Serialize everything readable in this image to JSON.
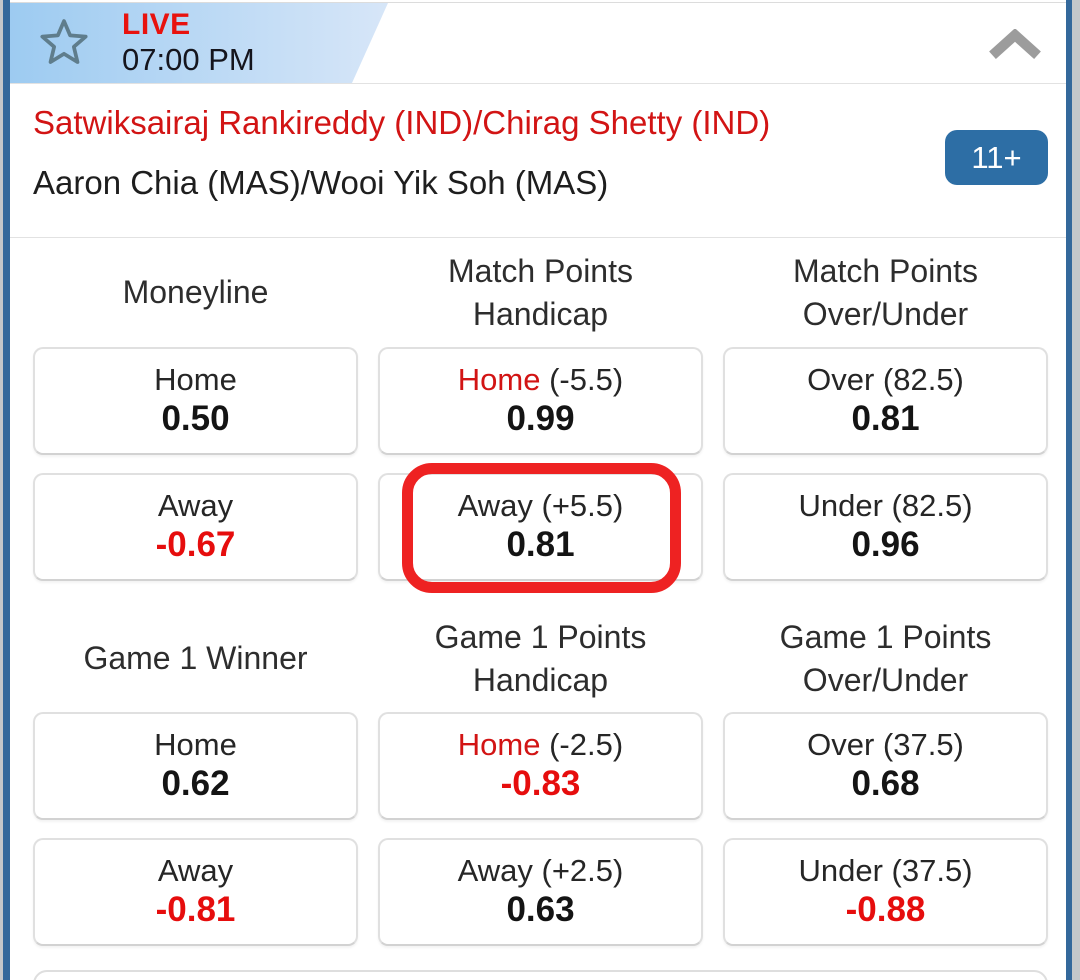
{
  "header": {
    "live": "LIVE",
    "time": "07:00 PM"
  },
  "match": {
    "line1": "Satwiksairaj Rankireddy (IND)/Chirag Shetty (IND)",
    "line2": "Aaron Chia (MAS)/Wooi Yik Soh (MAS)",
    "more_markets_badge": "11+"
  },
  "colors": {
    "accent_red": "#d21414",
    "live_red": "#e8120e",
    "odds_red": "#e60d0d",
    "ring_red": "#ee2222",
    "badge_blue": "#2d6ea5",
    "side_border_blue": "#33689b",
    "header_band_from": "#9dcbf1",
    "header_band_to": "#d7e6f8"
  },
  "market_groups": [
    {
      "markets": [
        {
          "title_lines": [
            "Moneyline"
          ],
          "selections": [
            {
              "label_parts": [
                {
                  "text": "Home",
                  "red": false
                }
              ],
              "odds": "0.50",
              "odds_red": false
            },
            {
              "label_parts": [
                {
                  "text": "Away",
                  "red": false
                }
              ],
              "odds": "-0.67",
              "odds_red": true
            }
          ]
        },
        {
          "title_lines": [
            "Match Points",
            "Handicap"
          ],
          "selections": [
            {
              "label_parts": [
                {
                  "text": "Home",
                  "red": true
                },
                {
                  "text": " (-5.5)",
                  "red": false
                }
              ],
              "odds": "0.99",
              "odds_red": false
            },
            {
              "label_parts": [
                {
                  "text": "Away (+5.5)",
                  "red": false
                }
              ],
              "odds": "0.81",
              "odds_red": false,
              "highlighted": true
            }
          ]
        },
        {
          "title_lines": [
            "Match Points",
            "Over/Under"
          ],
          "selections": [
            {
              "label_parts": [
                {
                  "text": "Over (82.5)",
                  "red": false
                }
              ],
              "odds": "0.81",
              "odds_red": false
            },
            {
              "label_parts": [
                {
                  "text": "Under (82.5)",
                  "red": false
                }
              ],
              "odds": "0.96",
              "odds_red": false
            }
          ]
        }
      ]
    },
    {
      "markets": [
        {
          "title_lines": [
            "Game 1 Winner"
          ],
          "selections": [
            {
              "label_parts": [
                {
                  "text": "Home",
                  "red": false
                }
              ],
              "odds": "0.62",
              "odds_red": false
            },
            {
              "label_parts": [
                {
                  "text": "Away",
                  "red": false
                }
              ],
              "odds": "-0.81",
              "odds_red": true
            }
          ]
        },
        {
          "title_lines": [
            "Game 1 Points",
            "Handicap"
          ],
          "selections": [
            {
              "label_parts": [
                {
                  "text": "Home",
                  "red": true
                },
                {
                  "text": " (-2.5)",
                  "red": false
                }
              ],
              "odds": "-0.83",
              "odds_red": true
            },
            {
              "label_parts": [
                {
                  "text": "Away (+2.5)",
                  "red": false
                }
              ],
              "odds": "0.63",
              "odds_red": false
            }
          ]
        },
        {
          "title_lines": [
            "Game 1 Points",
            "Over/Under"
          ],
          "selections": [
            {
              "label_parts": [
                {
                  "text": "Over (37.5)",
                  "red": false
                }
              ],
              "odds": "0.68",
              "odds_red": false
            },
            {
              "label_parts": [
                {
                  "text": "Under (37.5)",
                  "red": false
                }
              ],
              "odds": "-0.88",
              "odds_red": true
            }
          ]
        }
      ]
    }
  ]
}
